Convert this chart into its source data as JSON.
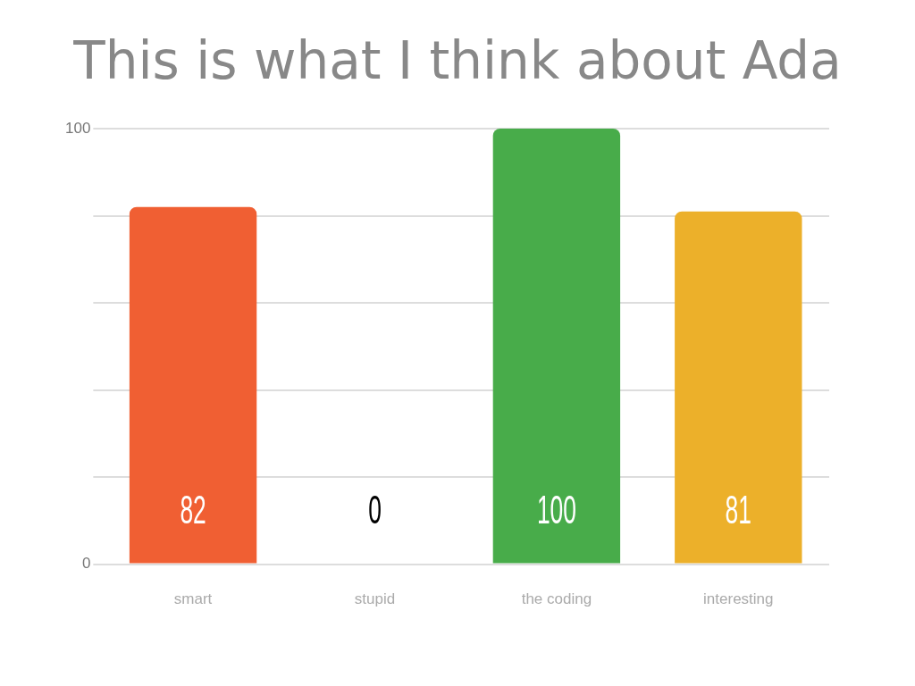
{
  "chart_data": {
    "type": "bar",
    "title": "This is what I think about Ada",
    "categories": [
      "smart",
      "stupid",
      "the coding",
      "interesting"
    ],
    "values": [
      82,
      0,
      100,
      81
    ],
    "colors": [
      "#f05f33",
      "#3e7fc4",
      "#48ac4a",
      "#ecb02a"
    ],
    "ylim": [
      0,
      100
    ],
    "yticks": [
      0,
      {
        "value": 20,
        "label": null
      },
      {
        "value": 40,
        "label": null
      },
      {
        "value": 60,
        "label": null
      },
      {
        "value": 80,
        "label": null
      },
      100
    ],
    "grid": "y",
    "legend": false,
    "data_labels": true
  }
}
